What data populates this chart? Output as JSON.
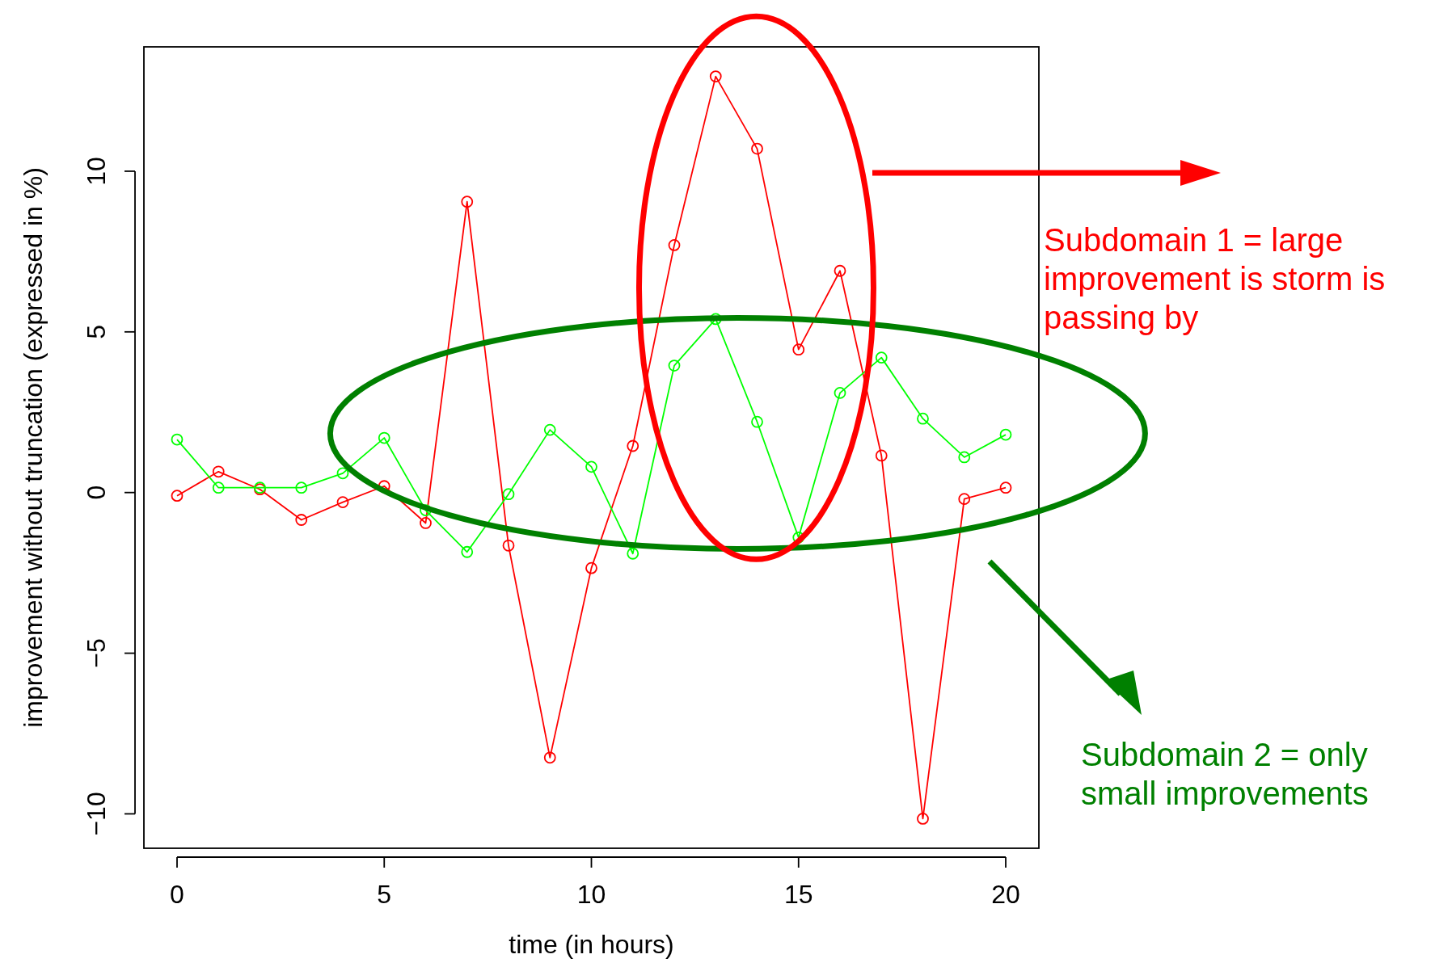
{
  "chart_data": {
    "type": "line",
    "xlabel": "time (in hours)",
    "ylabel": "improvement without truncation (expressed in %)",
    "x": [
      0,
      1,
      2,
      3,
      4,
      5,
      6,
      7,
      8,
      9,
      10,
      11,
      12,
      13,
      14,
      15,
      16,
      17,
      18,
      19,
      20
    ],
    "series": [
      {
        "color": "#ff0000",
        "values": [
          -0.1,
          0.65,
          0.1,
          -0.85,
          -0.3,
          0.2,
          -0.95,
          9.05,
          -1.65,
          -8.25,
          -2.35,
          1.45,
          7.7,
          12.95,
          10.7,
          4.45,
          6.9,
          1.15,
          -10.15,
          -0.2,
          0.15
        ]
      },
      {
        "color": "#00ff00",
        "values": [
          1.65,
          0.15,
          0.15,
          0.15,
          0.6,
          1.7,
          -0.55,
          -1.85,
          -0.05,
          1.95,
          0.8,
          -1.9,
          3.95,
          5.4,
          2.2,
          -1.4,
          3.1,
          4.2,
          2.3,
          1.1,
          1.8
        ]
      }
    ],
    "xlim": [
      -0.8,
      20.8
    ],
    "ylim": [
      -11.07,
      13.87
    ],
    "xticks": [
      0,
      5,
      10,
      15,
      20
    ],
    "yticks": [
      -10,
      -5,
      0,
      5,
      10
    ],
    "marker": "circle",
    "grid": false,
    "annotations": [
      "Subdomain 1 = large improvement is storm is passing by",
      "Subdomain 2 = only small improvements"
    ]
  }
}
